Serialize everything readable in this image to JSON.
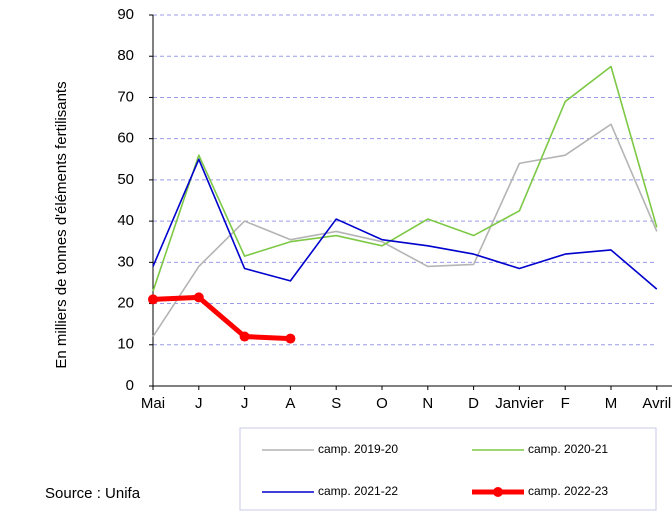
{
  "chart_data": {
    "type": "line",
    "y_label": "En milliers de tonnes d'éléments fertilisants",
    "source": "Source : Unifa",
    "categories": [
      "Mai",
      "J",
      "J",
      "A",
      "S",
      "O",
      "N",
      "D",
      "Janvier",
      "F",
      "M",
      "Avril"
    ],
    "ylim": [
      0,
      90
    ],
    "yticks": [
      0,
      10,
      20,
      30,
      40,
      50,
      60,
      70,
      80,
      90
    ],
    "grid": true,
    "series": [
      {
        "name": "camp. 2019-20",
        "color": "#b4b4b4",
        "values": [
          12,
          29,
          40,
          35.5,
          37.5,
          35,
          29,
          29.5,
          54,
          56,
          63.5,
          37.5
        ]
      },
      {
        "name": "camp. 2020-21",
        "color": "#7dc845",
        "values": [
          23,
          56,
          31.5,
          35,
          36.5,
          34,
          40.5,
          36.5,
          42.5,
          69,
          77.5,
          38.5
        ]
      },
      {
        "name": "camp. 2021-22",
        "color": "#0000cc",
        "values": [
          29,
          55,
          28.5,
          25.5,
          40.5,
          35.5,
          34,
          32,
          28.5,
          32,
          33,
          23.5
        ]
      },
      {
        "name": "camp. 2022-23",
        "color": "#ff0000",
        "values": [
          21,
          21.5,
          12,
          11.5,
          null,
          null,
          null,
          null,
          null,
          null,
          null,
          null
        ]
      }
    ]
  }
}
